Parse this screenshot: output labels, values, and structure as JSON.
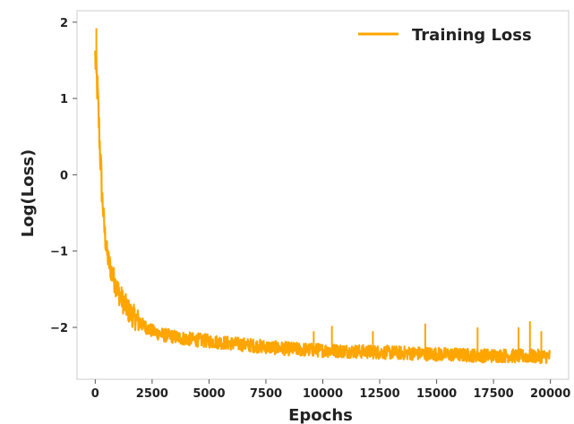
{
  "chart_data": {
    "type": "line",
    "title": "",
    "xlabel": "Epochs",
    "ylabel": "Log(Loss)",
    "xlim": [
      -800,
      20800
    ],
    "ylim": [
      -2.68,
      2.15
    ],
    "xticks": [
      0,
      2500,
      5000,
      7500,
      10000,
      12500,
      15000,
      17500,
      20000
    ],
    "yticks": [
      2,
      1,
      0,
      -1,
      -2
    ],
    "ytick_labels": [
      "2",
      "1",
      "0",
      "−1",
      "−2"
    ],
    "grid": false,
    "legend_position": "top-right",
    "colors": {
      "series": "#FFA500",
      "frame": "#CCCCCC",
      "text": "#222222"
    },
    "series": [
      {
        "name": "Training Loss",
        "x": [
          0,
          100,
          200,
          300,
          400,
          500,
          600,
          800,
          1000,
          1200,
          1500,
          2000,
          2500,
          3000,
          4000,
          5000,
          6000,
          7000,
          8000,
          9000,
          10000,
          11000,
          12000,
          13000,
          14000,
          15000,
          16000,
          17000,
          18000,
          19000,
          20000
        ],
        "y": [
          1.55,
          1.1,
          0.4,
          -0.25,
          -0.7,
          -1.0,
          -1.15,
          -1.35,
          -1.52,
          -1.65,
          -1.8,
          -1.95,
          -2.05,
          -2.1,
          -2.15,
          -2.18,
          -2.21,
          -2.24,
          -2.27,
          -2.29,
          -2.3,
          -2.31,
          -2.32,
          -2.33,
          -2.34,
          -2.35,
          -2.36,
          -2.37,
          -2.37,
          -2.38,
          -2.38
        ],
        "spikes": [
          {
            "x": 50,
            "y": 1.92
          },
          {
            "x": 9600,
            "y": -2.05
          },
          {
            "x": 10400,
            "y": -1.98
          },
          {
            "x": 12200,
            "y": -2.05
          },
          {
            "x": 14500,
            "y": -1.95
          },
          {
            "x": 16800,
            "y": -2.0
          },
          {
            "x": 18600,
            "y": -2.0
          },
          {
            "x": 19100,
            "y": -1.92
          },
          {
            "x": 19600,
            "y": -2.05
          }
        ]
      }
    ]
  }
}
